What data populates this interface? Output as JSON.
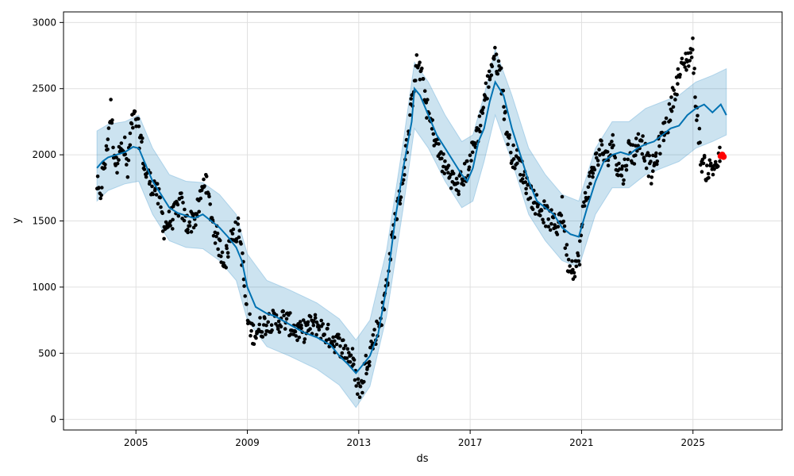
{
  "chart_data": {
    "type": "line",
    "title": "",
    "xlabel": "ds",
    "ylabel": "y",
    "x_ticks": [
      "2005",
      "2009",
      "2013",
      "2017",
      "2021",
      "2025"
    ],
    "y_ticks": [
      "0",
      "500",
      "1000",
      "1500",
      "2000",
      "2500",
      "3000"
    ],
    "xlim": [
      2002.4,
      2028.2
    ],
    "ylim": [
      -80,
      3080
    ],
    "grid": true,
    "colors": {
      "observed": "#000000",
      "forecast_line": "#0072B2",
      "uncertainty_band": "#0072B2",
      "band_opacity": 0.2,
      "recent_points": "#ff0000"
    },
    "series": [
      {
        "kind": "observed points",
        "x": [
          2003.6,
          2003.7,
          2003.8,
          2003.9,
          2004.0,
          2004.1,
          2004.2,
          2004.3,
          2004.4,
          2004.5,
          2004.6,
          2004.7,
          2004.8,
          2004.9,
          2005.0,
          2005.1,
          2005.2,
          2005.3,
          2005.5,
          2005.7,
          2005.9,
          2006.0,
          2006.2,
          2006.4,
          2006.6,
          2006.8,
          2007.0,
          2007.2,
          2007.4,
          2007.5,
          2007.6,
          2007.8,
          2008.0,
          2008.2,
          2008.4,
          2008.5,
          2008.6,
          2008.7,
          2008.8,
          2008.9,
          2009.0,
          2009.2,
          2009.5,
          2009.8,
          2010.0,
          2010.3,
          2010.6,
          2010.9,
          2011.2,
          2011.5,
          2011.8,
          2012.1,
          2012.4,
          2012.6,
          2012.8,
          2012.9,
          2013.0,
          2013.1,
          2013.2,
          2013.35,
          2013.5,
          2013.7,
          2013.9,
          2014.1,
          2014.3,
          2014.5,
          2014.7,
          2014.8,
          2014.9,
          2015.0,
          2015.1,
          2015.3,
          2015.5,
          2015.7,
          2015.9,
          2016.1,
          2016.3,
          2016.5,
          2016.7,
          2016.9,
          2017.1,
          2017.3,
          2017.5,
          2017.7,
          2017.85,
          2018.0,
          2018.1,
          2018.3,
          2018.5,
          2018.7,
          2018.9,
          2019.1,
          2019.3,
          2019.5,
          2019.7,
          2019.9,
          2020.1,
          2020.3,
          2020.5,
          2020.7,
          2020.9,
          2021.1,
          2021.3,
          2021.5,
          2021.7,
          2021.9,
          2022.1,
          2022.3,
          2022.5,
          2022.7,
          2022.9,
          2023.1,
          2023.3,
          2023.5,
          2023.7,
          2023.9,
          2024.1,
          2024.3,
          2024.5,
          2024.7,
          2024.9,
          2025.0,
          2025.1,
          2025.3,
          2025.5,
          2025.7,
          2025.9,
          2026.0
        ],
        "y": [
          1780,
          1650,
          1850,
          1950,
          2150,
          2350,
          2050,
          1900,
          2100,
          2000,
          2050,
          1850,
          2150,
          2250,
          2280,
          2150,
          2100,
          1900,
          1800,
          1750,
          1600,
          1450,
          1500,
          1550,
          1650,
          1480,
          1500,
          1550,
          1750,
          1850,
          1650,
          1450,
          1300,
          1200,
          1350,
          1450,
          1400,
          1450,
          1250,
          1000,
          750,
          650,
          700,
          750,
          730,
          760,
          700,
          650,
          700,
          720,
          650,
          600,
          550,
          500,
          450,
          300,
          240,
          230,
          380,
          480,
          580,
          700,
          850,
          1200,
          1500,
          1700,
          2000,
          2200,
          2400,
          2600,
          2700,
          2550,
          2300,
          2150,
          2000,
          1900,
          1850,
          1750,
          1800,
          1900,
          2050,
          2200,
          2400,
          2600,
          2750,
          2680,
          2600,
          2200,
          2000,
          1950,
          1850,
          1750,
          1650,
          1600,
          1550,
          1500,
          1450,
          1600,
          1200,
          1150,
          1200,
          1650,
          1800,
          1950,
          2050,
          1950,
          2100,
          1900,
          1850,
          2050,
          2000,
          2150,
          2000,
          1850,
          2000,
          2150,
          2250,
          2450,
          2600,
          2700,
          2750,
          2800,
          2400,
          1950,
          1880,
          1900,
          1950,
          2000
        ]
      },
      {
        "kind": "forecast yhat",
        "x": [
          2003.6,
          2003.8,
          2004.0,
          2004.3,
          2004.6,
          2004.9,
          2005.1,
          2005.3,
          2005.6,
          2005.9,
          2006.2,
          2006.5,
          2006.8,
          2007.1,
          2007.4,
          2007.7,
          2008.0,
          2008.3,
          2008.6,
          2008.8,
          2009.0,
          2009.3,
          2009.7,
          2010.0,
          2010.5,
          2011.0,
          2011.5,
          2012.0,
          2012.3,
          2012.6,
          2012.9,
          2013.1,
          2013.4,
          2013.7,
          2014.0,
          2014.3,
          2014.6,
          2014.9,
          2015.0,
          2015.2,
          2015.5,
          2015.8,
          2016.1,
          2016.4,
          2016.7,
          2016.9,
          2017.1,
          2017.3,
          2017.5,
          2017.7,
          2017.9,
          2018.2,
          2018.5,
          2018.8,
          2019.1,
          2019.4,
          2019.7,
          2020.0,
          2020.3,
          2020.6,
          2020.9,
          2021.2,
          2021.5,
          2021.8,
          2022.1,
          2022.4,
          2022.7,
          2023.0,
          2023.3,
          2023.6,
          2023.9,
          2024.2,
          2024.5,
          2024.8,
          2025.1,
          2025.4,
          2025.7,
          2026.0,
          2026.2
        ],
        "y": [
          1900,
          1950,
          1980,
          2000,
          2020,
          2060,
          2050,
          1950,
          1800,
          1700,
          1600,
          1560,
          1540,
          1520,
          1550,
          1500,
          1450,
          1380,
          1300,
          1200,
          1000,
          850,
          800,
          780,
          720,
          660,
          620,
          560,
          480,
          420,
          350,
          400,
          480,
          650,
          1000,
          1500,
          1900,
          2250,
          2500,
          2450,
          2300,
          2150,
          2050,
          1950,
          1850,
          1800,
          1900,
          2100,
          2200,
          2400,
          2550,
          2450,
          2200,
          2000,
          1800,
          1650,
          1600,
          1550,
          1450,
          1400,
          1380,
          1600,
          1800,
          1950,
          2000,
          2020,
          2000,
          2050,
          2080,
          2100,
          2150,
          2200,
          2220,
          2300,
          2350,
          2380,
          2320,
          2380,
          2300
        ]
      },
      {
        "kind": "uncertainty upper",
        "x": [
          2003.6,
          2004.0,
          2004.6,
          2005.1,
          2005.6,
          2006.2,
          2006.8,
          2007.4,
          2008.0,
          2008.6,
          2009.0,
          2009.7,
          2010.5,
          2011.5,
          2012.3,
          2012.9,
          2013.4,
          2014.0,
          2014.6,
          2015.0,
          2015.5,
          2016.1,
          2016.7,
          2017.1,
          2017.5,
          2017.9,
          2018.5,
          2019.1,
          2019.7,
          2020.3,
          2020.9,
          2021.5,
          2022.1,
          2022.7,
          2023.3,
          2023.9,
          2024.5,
          2025.1,
          2025.7,
          2026.2
        ],
        "y": [
          2180,
          2230,
          2250,
          2300,
          2050,
          1850,
          1800,
          1790,
          1700,
          1550,
          1250,
          1050,
          980,
          880,
          760,
          600,
          750,
          1280,
          2100,
          2700,
          2550,
          2300,
          2100,
          2150,
          2450,
          2800,
          2450,
          2050,
          1850,
          1700,
          1650,
          2050,
          2250,
          2250,
          2350,
          2400,
          2450,
          2550,
          2600,
          2650
        ]
      },
      {
        "kind": "uncertainty lower",
        "x": [
          2003.6,
          2004.0,
          2004.6,
          2005.1,
          2005.6,
          2006.2,
          2006.8,
          2007.4,
          2008.0,
          2008.6,
          2009.0,
          2009.7,
          2010.5,
          2011.5,
          2012.3,
          2012.9,
          2013.4,
          2014.0,
          2014.6,
          2015.0,
          2015.5,
          2016.1,
          2016.7,
          2017.1,
          2017.5,
          2017.9,
          2018.5,
          2019.1,
          2019.7,
          2020.3,
          2020.9,
          2021.5,
          2022.1,
          2022.7,
          2023.3,
          2023.9,
          2024.5,
          2025.1,
          2025.7,
          2026.2
        ],
        "y": [
          1650,
          1730,
          1780,
          1800,
          1550,
          1350,
          1300,
          1290,
          1200,
          1050,
          750,
          550,
          480,
          380,
          260,
          90,
          250,
          780,
          1600,
          2200,
          2050,
          1800,
          1600,
          1650,
          1950,
          2300,
          1950,
          1550,
          1350,
          1200,
          1150,
          1550,
          1750,
          1750,
          1850,
          1900,
          1950,
          2050,
          2100,
          2150
        ]
      },
      {
        "kind": "recent observations",
        "x": [
          2026.0,
          2026.05,
          2026.1
        ],
        "y": [
          1990,
          2000,
          1985
        ]
      }
    ]
  }
}
